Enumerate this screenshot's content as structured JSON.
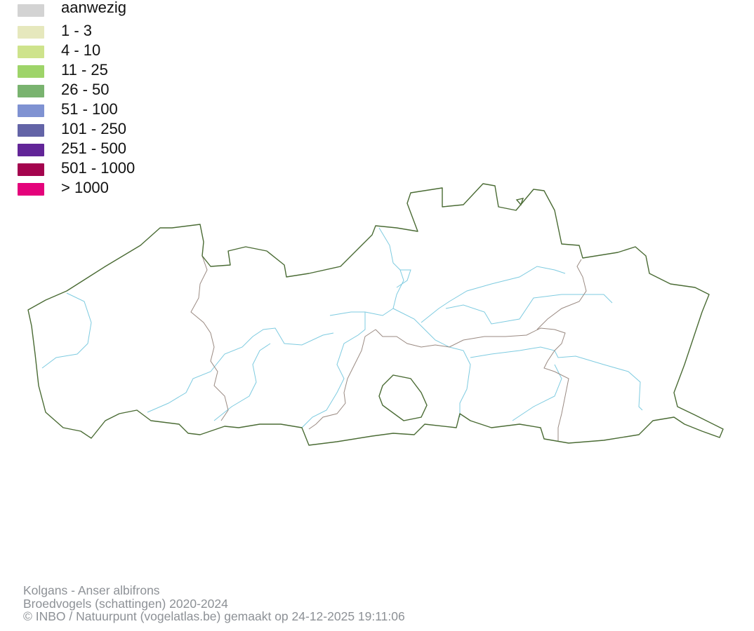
{
  "legend": {
    "items": [
      {
        "label": "aanwezig",
        "color": "#d3d3d3"
      },
      {
        "label": "1 - 3",
        "color": "#e6e8bd"
      },
      {
        "label": "4 - 10",
        "color": "#cee38c"
      },
      {
        "label": "11 - 25",
        "color": "#9ed469"
      },
      {
        "label": "26 - 50",
        "color": "#79b36f"
      },
      {
        "label": "51 - 100",
        "color": "#7f92d2"
      },
      {
        "label": "101 - 250",
        "color": "#6364a7"
      },
      {
        "label": "251 - 500",
        "color": "#622598"
      },
      {
        "label": "501 - 1000",
        "color": "#a4044e"
      },
      {
        "label": "> 1000",
        "color": "#e4037b"
      }
    ]
  },
  "map": {
    "region_outline_color": "#4a6b34",
    "province_border_color": "#9a8a82",
    "river_color": "#7ecbe0"
  },
  "footer": {
    "species": "Kolgans - Anser albifrons",
    "dataset": "Broedvogels (schattingen) 2020-2024",
    "credits": "© INBO / Natuurpunt (vogelatlas.be) gemaakt op 24-12-2025 19:11:06"
  }
}
